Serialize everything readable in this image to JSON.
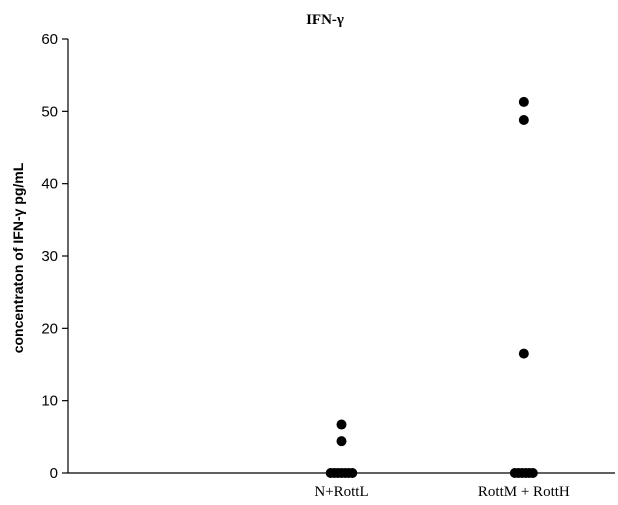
{
  "chart_data": {
    "type": "scatter",
    "title": "IFN-γ",
    "xlabel": "",
    "ylabel": "concentraton of IFN-γ pg/mL",
    "ylim": [
      0,
      60
    ],
    "yticks": [
      0,
      10,
      20,
      30,
      40,
      50,
      60
    ],
    "categories": [
      "",
      "N+RottL",
      "RottM + RottH"
    ],
    "points": [
      {
        "category": "N+RottL",
        "values": [
          6.7,
          4.4,
          0,
          0,
          0,
          0,
          0,
          0,
          0
        ]
      },
      {
        "category": "RottM + RottH",
        "values": [
          51.3,
          48.8,
          16.5,
          0,
          0,
          0,
          0,
          0,
          0
        ]
      }
    ],
    "grid": false,
    "colors": {
      "marker": "#000000",
      "axis": "#000000"
    }
  }
}
